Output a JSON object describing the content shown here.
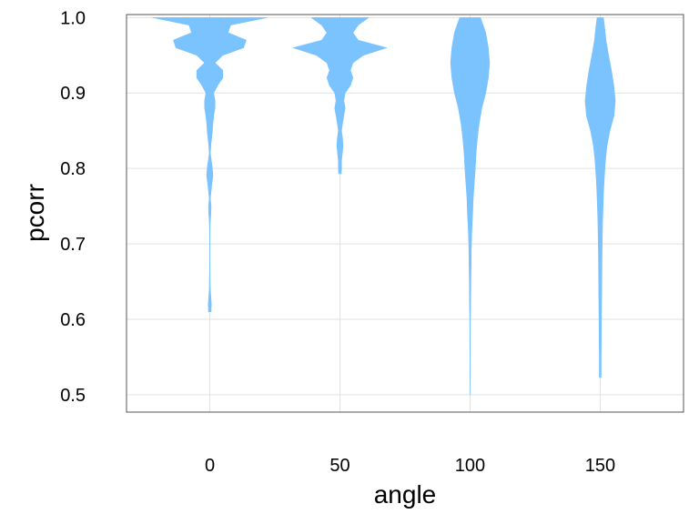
{
  "chart_data": {
    "type": "violin",
    "xlabel": "angle",
    "ylabel": "pcorr",
    "categories": [
      "0",
      "50",
      "100",
      "150"
    ],
    "x_values": [
      0,
      50,
      100,
      150
    ],
    "xlim": [
      -32,
      182
    ],
    "ylim": [
      0.477,
      1.004
    ],
    "y_ticks": [
      0.5,
      0.6,
      0.7,
      0.8,
      0.9,
      1.0
    ],
    "y_tick_labels": [
      "0.5",
      "0.6",
      "0.7",
      "0.8",
      "0.9",
      "1.0"
    ],
    "grid": true,
    "fill_color": "#7ac3ff",
    "violins": [
      {
        "x": 0,
        "label": "0",
        "y_range": [
          0.61,
          1.0
        ],
        "half_width": [
          [
            1.0,
            22
          ],
          [
            0.995,
            15
          ],
          [
            0.99,
            8
          ],
          [
            0.98,
            7
          ],
          [
            0.97,
            14
          ],
          [
            0.96,
            13
          ],
          [
            0.95,
            5
          ],
          [
            0.94,
            2
          ],
          [
            0.93,
            5
          ],
          [
            0.92,
            5
          ],
          [
            0.91,
            3
          ],
          [
            0.9,
            1.5
          ],
          [
            0.89,
            2
          ],
          [
            0.88,
            2
          ],
          [
            0.87,
            1.5
          ],
          [
            0.86,
            1.2
          ],
          [
            0.85,
            1
          ],
          [
            0.84,
            0.7
          ],
          [
            0.83,
            0.4
          ],
          [
            0.82,
            0.2
          ],
          [
            0.81,
            0.6
          ],
          [
            0.8,
            1
          ],
          [
            0.79,
            1.2
          ],
          [
            0.78,
            0.8
          ],
          [
            0.77,
            0.5
          ],
          [
            0.76,
            0.2
          ],
          [
            0.75,
            0.5
          ],
          [
            0.74,
            0.4
          ],
          [
            0.73,
            0.2
          ],
          [
            0.72,
            0.1
          ],
          [
            0.7,
            0.05
          ],
          [
            0.68,
            0.05
          ],
          [
            0.66,
            0.1
          ],
          [
            0.64,
            0.2
          ],
          [
            0.63,
            0.4
          ],
          [
            0.62,
            0.6
          ],
          [
            0.615,
            0.5
          ],
          [
            0.61,
            0.5
          ]
        ]
      },
      {
        "x": 50,
        "label": "50",
        "y_range": [
          0.793,
          1.0
        ],
        "half_width": [
          [
            1.0,
            11
          ],
          [
            0.99,
            7
          ],
          [
            0.98,
            5
          ],
          [
            0.97,
            7
          ],
          [
            0.96,
            18
          ],
          [
            0.95,
            9
          ],
          [
            0.94,
            5
          ],
          [
            0.93,
            4
          ],
          [
            0.92,
            5
          ],
          [
            0.91,
            4
          ],
          [
            0.9,
            2
          ],
          [
            0.89,
            1.5
          ],
          [
            0.88,
            2
          ],
          [
            0.87,
            1.5
          ],
          [
            0.86,
            1
          ],
          [
            0.85,
            0.6
          ],
          [
            0.84,
            1
          ],
          [
            0.83,
            1.2
          ],
          [
            0.82,
            0.9
          ],
          [
            0.81,
            0.6
          ],
          [
            0.8,
            0.6
          ],
          [
            0.793,
            0.5
          ]
        ]
      },
      {
        "x": 100,
        "label": "100",
        "y_range": [
          0.5,
          1.0
        ],
        "half_width": [
          [
            1.0,
            4
          ],
          [
            0.98,
            6
          ],
          [
            0.96,
            7
          ],
          [
            0.94,
            7.5
          ],
          [
            0.92,
            7
          ],
          [
            0.9,
            6
          ],
          [
            0.88,
            4.5
          ],
          [
            0.86,
            3.5
          ],
          [
            0.84,
            2.8
          ],
          [
            0.82,
            2.3
          ],
          [
            0.8,
            2
          ],
          [
            0.78,
            1.6
          ],
          [
            0.76,
            1.2
          ],
          [
            0.74,
            1
          ],
          [
            0.72,
            0.7
          ],
          [
            0.7,
            0.5
          ],
          [
            0.65,
            0.3
          ],
          [
            0.6,
            0.15
          ],
          [
            0.55,
            0.05
          ],
          [
            0.5,
            0.02
          ]
        ]
      },
      {
        "x": 150,
        "label": "150",
        "y_range": [
          0.523,
          1.0
        ],
        "half_width": [
          [
            1.0,
            1.2
          ],
          [
            0.99,
            1.6
          ],
          [
            0.97,
            2.2
          ],
          [
            0.95,
            3.2
          ],
          [
            0.93,
            4.3
          ],
          [
            0.91,
            5.2
          ],
          [
            0.89,
            5.8
          ],
          [
            0.87,
            5.3
          ],
          [
            0.85,
            3.7
          ],
          [
            0.83,
            2.6
          ],
          [
            0.81,
            2
          ],
          [
            0.79,
            1.6
          ],
          [
            0.77,
            1.3
          ],
          [
            0.75,
            1.1
          ],
          [
            0.73,
            0.9
          ],
          [
            0.71,
            0.8
          ],
          [
            0.69,
            0.7
          ],
          [
            0.67,
            0.65
          ],
          [
            0.65,
            0.6
          ],
          [
            0.63,
            0.55
          ],
          [
            0.61,
            0.5
          ],
          [
            0.59,
            0.45
          ],
          [
            0.57,
            0.4
          ],
          [
            0.55,
            0.35
          ],
          [
            0.53,
            0.35
          ],
          [
            0.523,
            0.35
          ]
        ]
      }
    ]
  }
}
